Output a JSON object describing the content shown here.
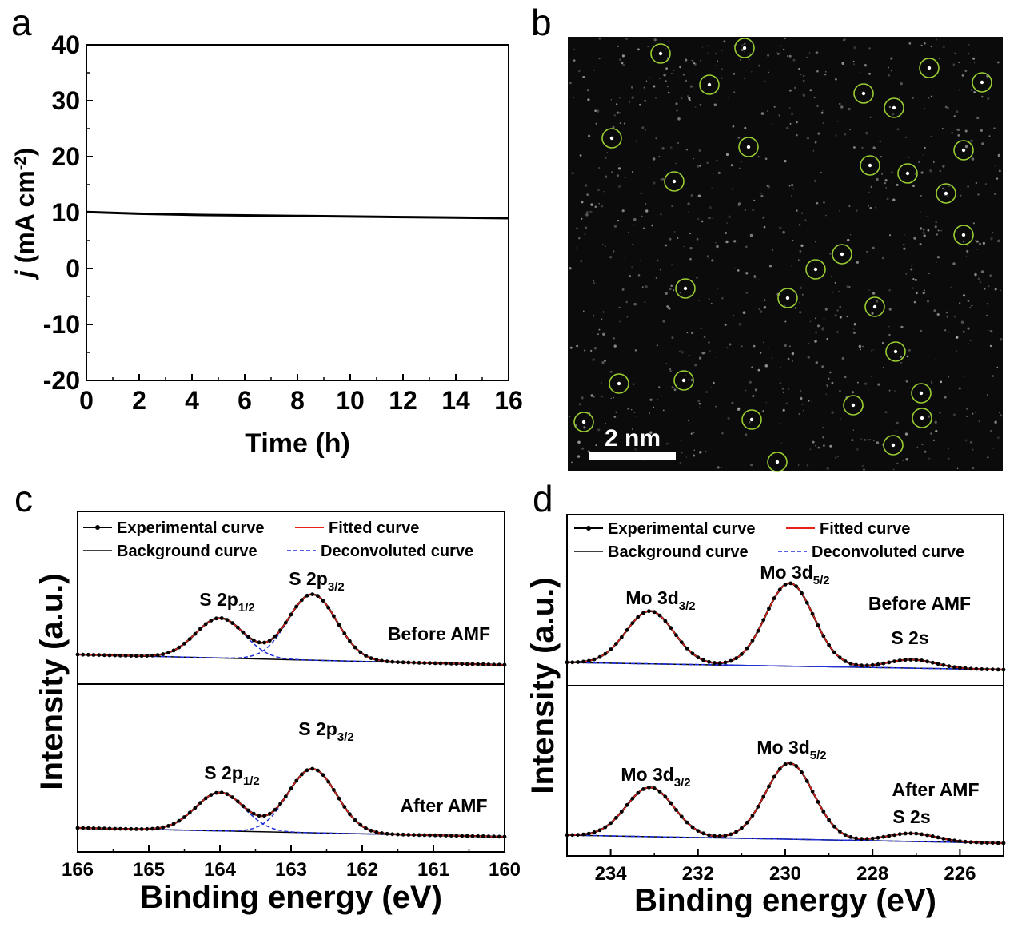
{
  "chart_data": [
    {
      "panel": "a",
      "type": "line",
      "xlabel": "Time (h)",
      "ylabel_prefix": "j",
      "ylabel_unit": " (mA cm",
      "ylabel_sup": "-2",
      "ylabel_close": ")",
      "xlim": [
        0,
        16
      ],
      "ylim": [
        -20,
        40
      ],
      "xticks": [
        "0",
        "2",
        "4",
        "6",
        "8",
        "10",
        "12",
        "14",
        "16"
      ],
      "yticks": [
        "40",
        "30",
        "20",
        "10",
        "0",
        "-10",
        "-20"
      ],
      "series": [
        {
          "x": [
            0,
            2,
            4,
            6,
            8,
            10,
            12,
            14,
            16
          ],
          "y": [
            10.1,
            9.8,
            9.6,
            9.5,
            9.4,
            9.3,
            9.2,
            9.1,
            9.0
          ]
        }
      ],
      "color": "#000000"
    },
    {
      "panel": "b",
      "type": "image",
      "scalebar_label": "2 nm",
      "marker_color": "#9acd32"
    },
    {
      "panel": "c",
      "type": "line",
      "xlabel": "Binding energy (eV)",
      "ylabel": "Intensity (a.u.)",
      "xlim": [
        166,
        160
      ],
      "xticks": [
        "166",
        "165",
        "164",
        "163",
        "162",
        "161",
        "160"
      ],
      "legend": {
        "experimental": "Experimental curve",
        "fitted": "Fitted curve",
        "background": "Background curve",
        "deconvoluted": "Deconvoluted curve"
      },
      "subpanels": [
        {
          "condition": "Before AMF",
          "peak1": {
            "base": "S 2p",
            "sub": "1/2",
            "center": 164.0,
            "height": 0.52
          },
          "peak2": {
            "base": "S 2p",
            "sub": "3/2",
            "center": 162.7,
            "height": 0.86
          }
        },
        {
          "condition": "After AMF",
          "peak1": {
            "base": "S 2p",
            "sub": "1/2",
            "center": 164.0,
            "height": 0.48
          },
          "peak2": {
            "base": "S 2p",
            "sub": "3/2",
            "center": 162.7,
            "height": 0.8
          }
        }
      ]
    },
    {
      "panel": "d",
      "type": "line",
      "xlabel": "Binding energy (eV)",
      "ylabel": "Intensity (a.u.)",
      "xlim": [
        235,
        225
      ],
      "xticks": [
        "234",
        "232",
        "230",
        "228",
        "226"
      ],
      "legend": {
        "experimental": "Experimental curve",
        "fitted": "Fitted curve",
        "background": "Background curve",
        "deconvoluted": "Deconvoluted curve"
      },
      "subpanels": [
        {
          "condition": "Before AMF",
          "peak1": {
            "base": "Mo 3d",
            "sub": "3/2",
            "center": 233.1,
            "height": 0.56
          },
          "peak2": {
            "base": "Mo 3d",
            "sub": "5/2",
            "center": 229.9,
            "height": 0.88
          },
          "peak3": {
            "label": "S 2s",
            "center": 227.1,
            "height": 0.09
          }
        },
        {
          "condition": "After AMF",
          "peak1": {
            "base": "Mo 3d",
            "sub": "3/2",
            "center": 233.1,
            "height": 0.55
          },
          "peak2": {
            "base": "Mo 3d",
            "sub": "5/2",
            "center": 229.9,
            "height": 0.85
          },
          "peak3": {
            "label": "S 2s",
            "center": 227.1,
            "height": 0.09
          }
        }
      ]
    }
  ],
  "panel_labels": {
    "a": "a",
    "b": "b",
    "c": "c",
    "d": "d"
  },
  "colors": {
    "fitted": "#e8211a",
    "deconvoluted": "#1f2fd8",
    "experimental": "#000000",
    "background": "#000000"
  }
}
